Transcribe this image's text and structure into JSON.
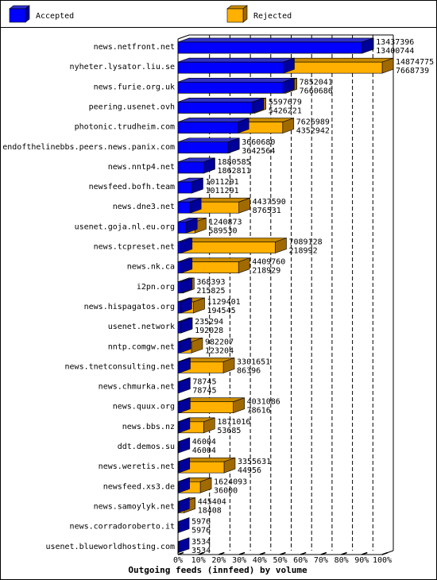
{
  "colors": {
    "accepted": "#0000ff",
    "accepted_dark": "#00009a",
    "accepted_top": "#3030c8",
    "rejected": "#ffb000",
    "rejected_dark": "#a06a00",
    "rejected_top": "#c88a00",
    "border": "#000000",
    "grid": "#000000",
    "background": "#ffffff"
  },
  "chart_data": {
    "type": "bar",
    "orientation": "horizontal",
    "stacked": "overlay",
    "title": "Outgoing feeds (innfeed) by volume",
    "legend": {
      "placement": "top",
      "entries": [
        {
          "name": "Accepted",
          "color": "#0000ff"
        },
        {
          "name": "Rejected",
          "color": "#ffb000"
        }
      ]
    },
    "x_axis": {
      "range": [
        0,
        100
      ],
      "unit": "%",
      "ticks": [
        "0%",
        "10%",
        "20%",
        "30%",
        "40%",
        "50%",
        "60%",
        "70%",
        "80%",
        "90%",
        "100%"
      ],
      "grid": true
    },
    "max_value": 14874775,
    "categories": [
      "news.netfront.net",
      "nyheter.lysator.liu.se",
      "news.furie.org.uk",
      "peering.usenet.ovh",
      "photonic.trudheim.com",
      "endofthelinebbs.peers.news.panix.com",
      "news.nntp4.net",
      "newsfeed.bofh.team",
      "news.dne3.net",
      "usenet.goja.nl.eu.org",
      "news.tcpreset.net",
      "news.nk.ca",
      "i2pn.org",
      "news.hispagatos.org",
      "usenet.network",
      "nntp.comgw.net",
      "news.tnetconsulting.net",
      "news.chmurka.net",
      "news.quux.org",
      "news.bbs.nz",
      "ddt.demos.su",
      "news.weretis.net",
      "newsfeed.xs3.de",
      "news.samoylyk.net",
      "news.corradoroberto.it",
      "usenet.blueworldhosting.com"
    ],
    "series": [
      {
        "name": "Accepted",
        "values": [
          13437396,
          14874775,
          7852041,
          5597679,
          7626989,
          3660680,
          1880585,
          1011291,
          4437590,
          1240873,
          7089128,
          4409760,
          368393,
          1129401,
          235294,
          982207,
          3301651,
          78745,
          4031086,
          1871016,
          46004,
          3355631,
          1624093,
          445404,
          5976,
          3534
        ]
      },
      {
        "name": "Rejected",
        "values": [
          13400744,
          7668739,
          7660686,
          5426221,
          4352942,
          3642564,
          1862811,
          1011291,
          876531,
          589530,
          218992,
          218929,
          215825,
          194545,
          192028,
          123204,
          86396,
          78745,
          78616,
          53685,
          46004,
          44956,
          36000,
          18408,
          5976,
          3534
        ]
      }
    ]
  }
}
